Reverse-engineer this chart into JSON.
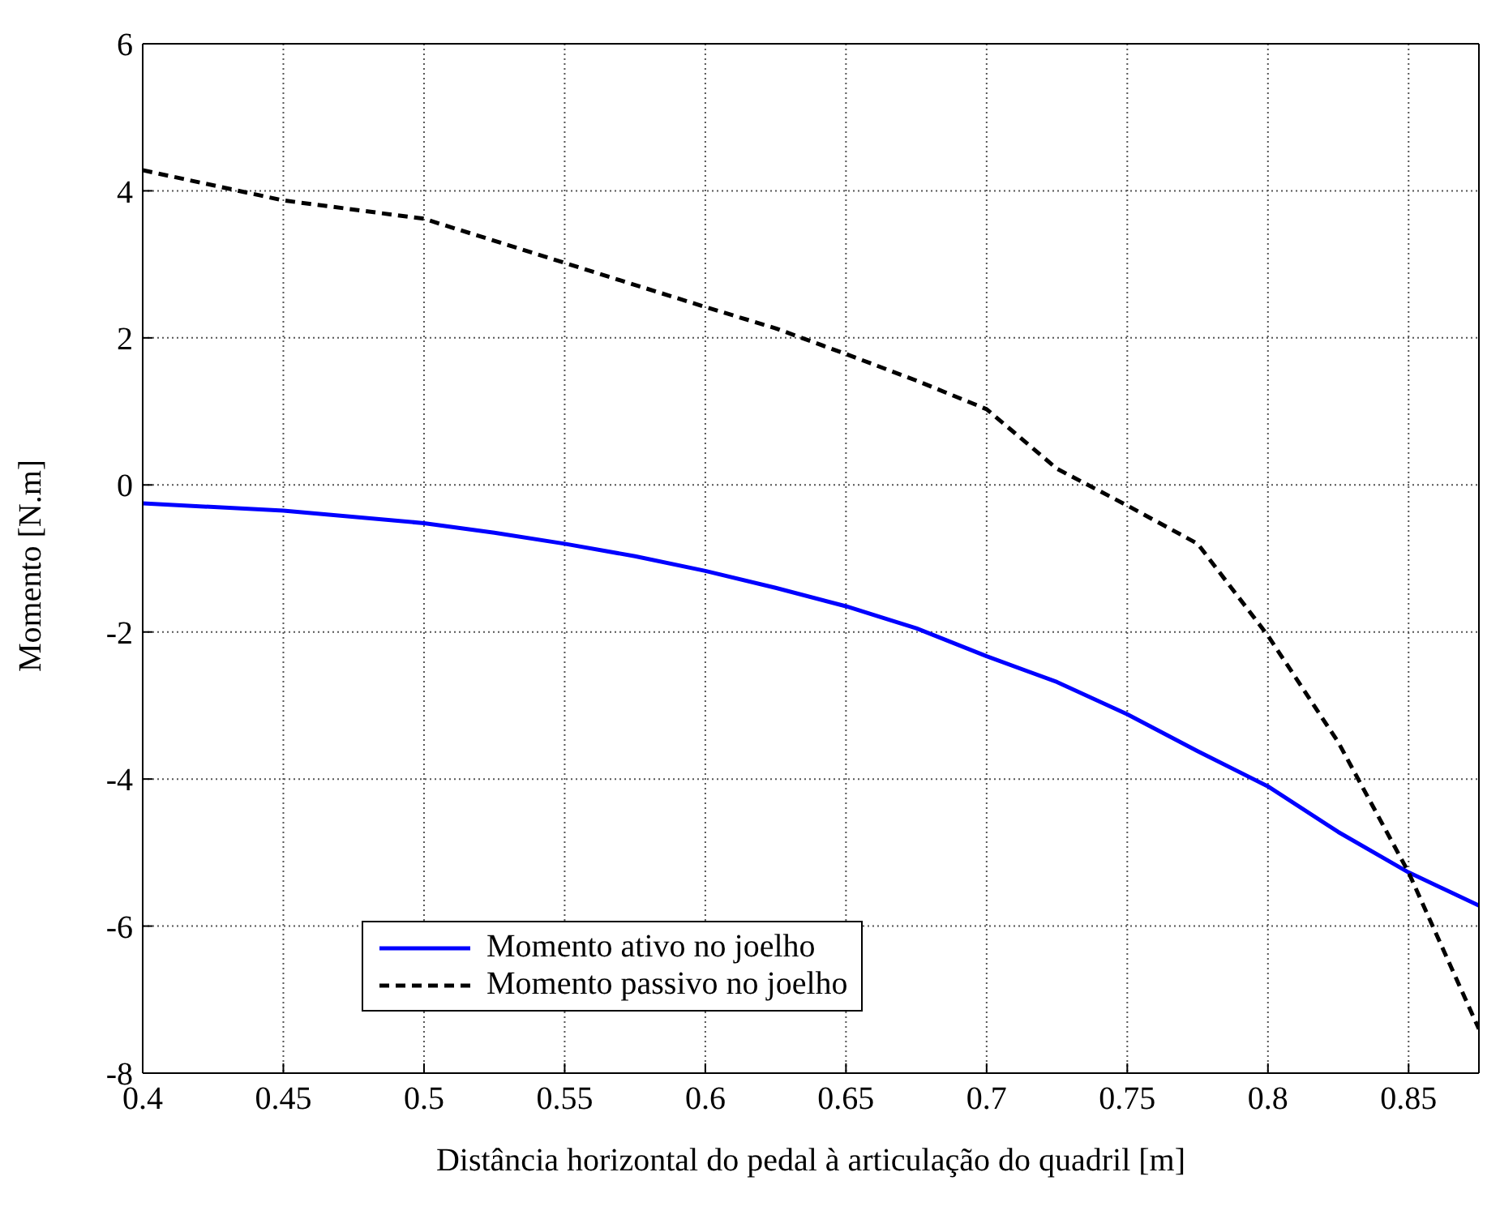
{
  "chart_data": {
    "type": "line",
    "xlabel": "Distância horizontal do pedal à articulação do quadril [m]",
    "ylabel": "Momento [N.m]",
    "xlim": [
      0.4,
      0.875
    ],
    "xticks": [
      0.4,
      0.45,
      0.5,
      0.55,
      0.6,
      0.65,
      0.7,
      0.75,
      0.8,
      0.85
    ],
    "ylim": [
      -8,
      6
    ],
    "yticks": [
      -8,
      -6,
      -4,
      -2,
      0,
      2,
      4,
      6
    ],
    "grid": true,
    "legend": "bottom left",
    "marker": "none",
    "series": [
      {
        "name": "Momento ativo no joelho",
        "color": "#0000ff",
        "line_style": "solid",
        "x": [
          0.4,
          0.45,
          0.5,
          0.525,
          0.55,
          0.575,
          0.6,
          0.625,
          0.65,
          0.675,
          0.7,
          0.725,
          0.75,
          0.775,
          0.8,
          0.825,
          0.85,
          0.875
        ],
        "values": [
          -0.25,
          -0.35,
          -0.52,
          -0.65,
          -0.8,
          -0.97,
          -1.17,
          -1.4,
          -1.65,
          -1.95,
          -2.33,
          -2.68,
          -3.12,
          -3.62,
          -4.1,
          -4.72,
          -5.27,
          -5.72
        ]
      },
      {
        "name": "Momento passivo no joelho",
        "color": "#000000",
        "line_style": "dashed",
        "x": [
          0.4,
          0.45,
          0.5,
          0.55,
          0.6,
          0.625,
          0.65,
          0.675,
          0.7,
          0.725,
          0.75,
          0.775,
          0.8,
          0.825,
          0.85,
          0.875
        ],
        "values": [
          4.28,
          3.87,
          3.62,
          3.02,
          2.42,
          2.13,
          1.78,
          1.42,
          1.03,
          0.22,
          -0.28,
          -0.8,
          -2.05,
          -3.5,
          -5.27,
          -7.4
        ]
      }
    ]
  }
}
